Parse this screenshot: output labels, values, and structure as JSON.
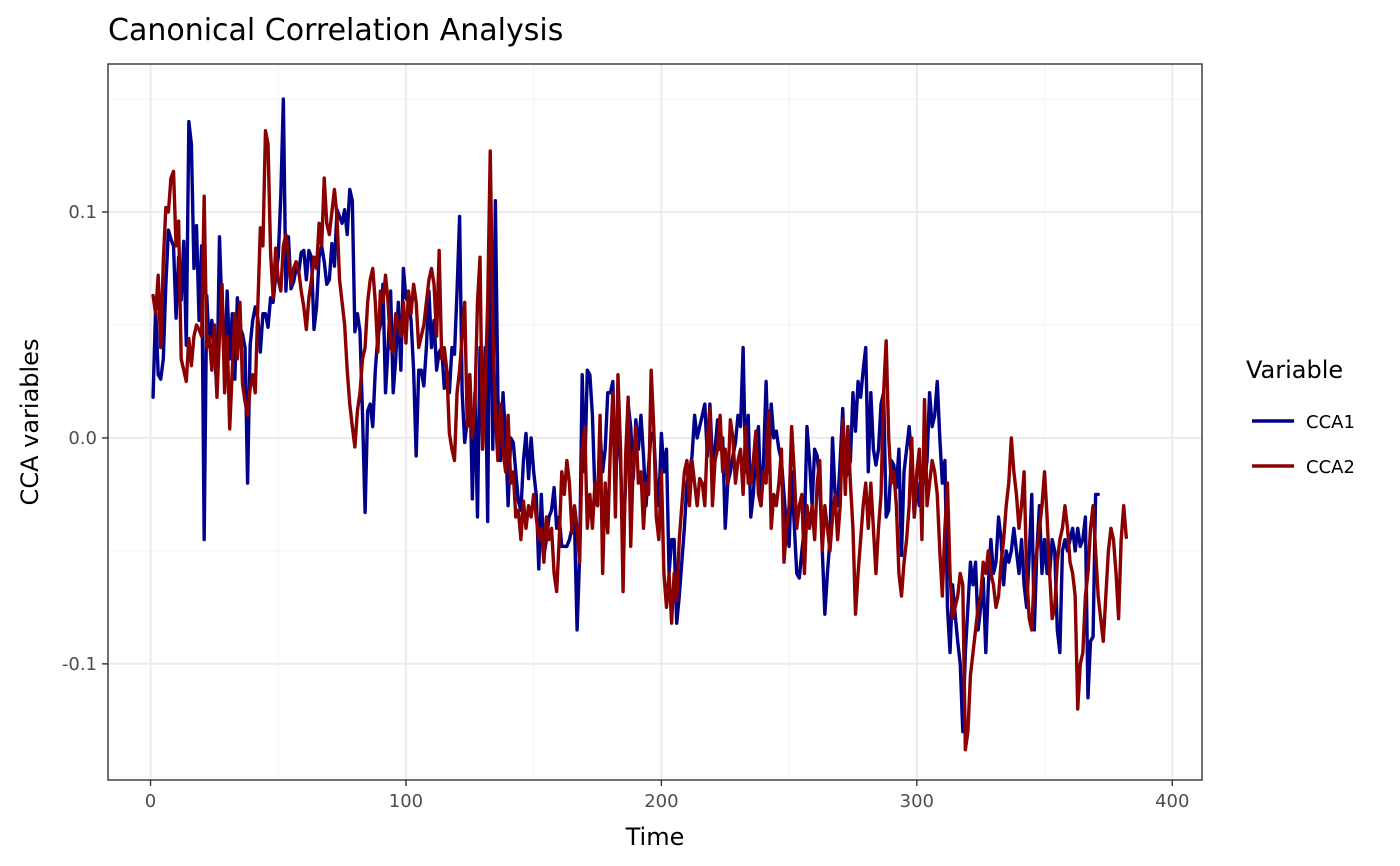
{
  "chart_data": {
    "type": "line",
    "title": "Canonical Correlation Analysis",
    "xlabel": "Time",
    "ylabel": "CCA  variables",
    "xlim": [
      -16.65,
      411.65
    ],
    "ylim": [
      -0.1514,
      0.1655
    ],
    "x_ticks": [
      0,
      100,
      200,
      300,
      400
    ],
    "x_tick_labels": [
      "0",
      "100",
      "200",
      "300",
      "400"
    ],
    "y_ticks": [
      -0.1,
      0.0,
      0.1
    ],
    "y_tick_labels": [
      "-0.1",
      "0.0",
      "0.1"
    ],
    "grid": true,
    "legend": {
      "title": "Variable",
      "position": "right"
    },
    "x_start": 1,
    "x_step": 1,
    "series": [
      {
        "name": "CCA1",
        "color": "#00008b",
        "values": [
          0.018,
          0.058,
          0.028,
          0.026,
          0.035,
          0.068,
          0.092,
          0.088,
          0.085,
          0.053,
          0.08,
          0.061,
          0.087,
          0.041,
          0.14,
          0.13,
          0.075,
          0.094,
          0.052,
          0.085,
          0.042,
          0.063,
          0.041,
          0.052,
          0.045,
          0.02,
          0.089,
          0.055,
          0.03,
          0.065,
          0.035,
          0.055,
          0.026,
          0.062,
          0.049,
          0.046,
          0.04,
          -0.02,
          0.041,
          0.052,
          0.058,
          0.053,
          0.038,
          0.055,
          0.055,
          0.049,
          0.062,
          0.052,
          0.072,
          0.08,
          0.107,
          0.15,
          0.065,
          0.089,
          0.066,
          0.069,
          0.075,
          0.073,
          0.082,
          0.083,
          0.07,
          0.083,
          0.08,
          0.048,
          0.058,
          0.08,
          0.085,
          0.078,
          0.068,
          0.07,
          0.086,
          0.076,
          0.101,
          0.098,
          0.095,
          0.101,
          0.09,
          0.11,
          0.105,
          0.047,
          0.055,
          0.047,
          0.01,
          -0.033,
          0.012,
          0.015,
          0.005,
          0.03,
          0.045,
          0.05,
          0.068,
          0.02,
          0.04,
          0.065,
          0.02,
          0.035,
          0.06,
          0.03,
          0.075,
          0.062,
          0.06,
          0.052,
          0.03,
          -0.008,
          0.03,
          0.03,
          0.023,
          0.04,
          0.065,
          0.04,
          0.052,
          0.03,
          0.038,
          0.04,
          0.022,
          0.03,
          0.02,
          0.04,
          0.037,
          0.065,
          0.098,
          0.02,
          -0.002,
          0.008,
          0.028,
          -0.027,
          0.02,
          -0.035,
          0.04,
          0.0,
          0.04,
          -0.037,
          0.105,
          -0.005,
          0.105,
          0.018,
          -0.01,
          0.02,
          0.0,
          -0.03,
          0.0,
          -0.002,
          -0.015,
          -0.028,
          -0.032,
          -0.01,
          0.002,
          -0.018,
          0.0,
          -0.015,
          -0.025,
          -0.058,
          -0.025,
          -0.052,
          -0.045,
          -0.035,
          -0.032,
          -0.022,
          -0.04,
          -0.035,
          -0.048,
          -0.048,
          -0.048,
          -0.045,
          -0.04,
          -0.038,
          -0.085,
          -0.052,
          -0.052,
          -0.015,
          0.03,
          0.028,
          0.01,
          -0.025,
          -0.03,
          0.002,
          -0.015,
          -0.005,
          0.02,
          0.02,
          0.025,
          -0.025,
          0.01,
          -0.01,
          -0.048,
          -0.02,
          0.015,
          0.005,
          -0.018,
          0.008,
          -0.005,
          0.01,
          -0.008,
          -0.03,
          -0.012,
          0.002,
          0.002,
          -0.02,
          -0.03,
          0.002,
          -0.015,
          -0.005,
          -0.06,
          -0.045,
          -0.045,
          -0.082,
          -0.07,
          -0.055,
          -0.04,
          -0.02,
          -0.015,
          -0.008,
          0.01,
          0.0,
          0.005,
          0.01,
          0.015,
          -0.008,
          0.015,
          -0.01,
          -0.005,
          0.008,
          -0.005,
          0.0,
          -0.04,
          -0.02,
          -0.015,
          -0.008,
          -0.002,
          0.01,
          0.005,
          0.04,
          -0.015,
          0.01,
          -0.035,
          -0.025,
          -0.005,
          0.005,
          -0.03,
          -0.01,
          0.025,
          -0.015,
          0.015,
          0.0,
          0.003,
          -0.005,
          -0.01,
          -0.025,
          -0.04,
          -0.048,
          -0.015,
          -0.038,
          -0.06,
          -0.062,
          -0.05,
          -0.04,
          0.005,
          -0.01,
          -0.03,
          -0.005,
          -0.008,
          -0.02,
          -0.05,
          -0.078,
          -0.06,
          -0.045,
          0.0,
          -0.025,
          -0.03,
          -0.01,
          0.013,
          -0.018,
          -0.015,
          -0.01,
          0.02,
          0.003,
          0.025,
          0.018,
          0.03,
          0.04,
          -0.015,
          0.02,
          -0.005,
          -0.012,
          -0.005,
          0.015,
          0.02,
          -0.035,
          -0.032,
          -0.01,
          -0.012,
          -0.022,
          -0.005,
          -0.052,
          -0.015,
          -0.005,
          0.005,
          -0.01,
          -0.035,
          -0.02,
          -0.03,
          -0.018,
          -0.02,
          -0.01,
          0.02,
          0.005,
          0.01,
          0.025,
          0.0,
          -0.02,
          -0.01,
          -0.075,
          -0.095,
          -0.065,
          -0.078,
          -0.09,
          -0.1,
          -0.13,
          -0.095,
          -0.075,
          -0.055,
          -0.065,
          -0.055,
          -0.085,
          -0.075,
          -0.062,
          -0.095,
          -0.065,
          -0.045,
          -0.06,
          -0.055,
          -0.035,
          -0.045,
          -0.065,
          -0.05,
          -0.055,
          -0.05,
          -0.04,
          -0.05,
          -0.06,
          -0.045,
          -0.065,
          -0.075,
          -0.052,
          -0.025,
          -0.085,
          -0.05,
          -0.03,
          -0.06,
          -0.045,
          -0.06,
          -0.06,
          -0.045,
          -0.05,
          -0.085,
          -0.095,
          -0.05,
          -0.045,
          -0.05,
          -0.045,
          -0.04,
          -0.05,
          -0.04,
          -0.048,
          -0.045,
          -0.035,
          -0.115,
          -0.09,
          -0.088,
          -0.025,
          -0.025
        ],
        "overrides": {
          "20": -0.045,
          "24": 0.04,
          "47": 0.06,
          "168": 0.028
        }
      },
      {
        "name": "CCA2",
        "color": "#8b0000",
        "values": [
          0.063,
          0.055,
          0.072,
          0.04,
          0.078,
          0.102,
          0.1,
          0.115,
          0.118,
          0.085,
          0.096,
          0.035,
          0.03,
          0.025,
          0.044,
          0.032,
          0.045,
          0.05,
          0.048,
          0.045,
          0.107,
          0.04,
          0.045,
          0.03,
          0.05,
          0.018,
          0.045,
          0.068,
          0.02,
          0.045,
          0.004,
          0.03,
          0.055,
          0.035,
          0.06,
          0.024,
          0.016,
          0.01,
          0.022,
          0.028,
          0.02,
          0.058,
          0.093,
          0.085,
          0.136,
          0.13,
          0.082,
          0.062,
          0.084,
          0.07,
          0.065,
          0.085,
          0.09,
          0.08,
          0.068,
          0.075,
          0.078,
          0.074,
          0.065,
          0.058,
          0.048,
          0.062,
          0.07,
          0.08,
          0.075,
          0.095,
          0.085,
          0.115,
          0.095,
          0.09,
          0.1,
          0.11,
          0.098,
          0.07,
          0.06,
          0.05,
          0.03,
          0.015,
          0.005,
          -0.004,
          0.012,
          0.02,
          0.035,
          0.04,
          0.06,
          0.07,
          0.075,
          0.06,
          0.038,
          0.065,
          0.06,
          0.072,
          0.06,
          0.04,
          0.038,
          0.055,
          0.05,
          0.045,
          0.06,
          0.042,
          0.065,
          0.055,
          0.068,
          0.06,
          0.04,
          0.045,
          0.05,
          0.06,
          0.07,
          0.075,
          0.068,
          0.045,
          0.083,
          0.035,
          0.04,
          0.03,
          0.002,
          -0.005,
          -0.01,
          0.02,
          0.03,
          0.045,
          0.06,
          0.005,
          0.028,
          0.0,
          0.015,
          0.06,
          0.08,
          -0.005,
          0.02,
          0.06,
          0.127,
          0.05,
          0.01,
          -0.01,
          0.015,
          -0.005,
          -0.015,
          0.01,
          -0.02,
          -0.015,
          -0.035,
          -0.032,
          -0.045,
          -0.028,
          -0.04,
          -0.03,
          -0.035,
          -0.025,
          -0.035,
          -0.045,
          -0.04,
          -0.055,
          -0.035,
          -0.045,
          -0.04,
          -0.06,
          -0.068,
          -0.045,
          -0.015,
          -0.025,
          -0.01,
          -0.02,
          -0.042,
          -0.03,
          -0.04,
          -0.055,
          -0.005,
          0.005,
          -0.04,
          -0.025,
          -0.04,
          -0.02,
          -0.03,
          0.01,
          -0.06,
          -0.02,
          -0.042,
          -0.005,
          0.02,
          -0.035,
          0.028,
          -0.005,
          -0.068,
          -0.008,
          0.018,
          -0.048,
          -0.01,
          0.005,
          -0.02,
          -0.015,
          -0.04,
          -0.02,
          -0.025,
          0.03,
          0.005,
          -0.035,
          -0.045,
          -0.015,
          -0.06,
          -0.075,
          -0.06,
          -0.082,
          -0.06,
          -0.072,
          -0.045,
          -0.03,
          -0.015,
          -0.01,
          -0.03,
          -0.01,
          -0.02,
          -0.03,
          -0.018,
          -0.02,
          -0.03,
          0.0,
          0.013,
          -0.03,
          -0.01,
          -0.005,
          0.01,
          -0.015,
          -0.005,
          -0.02,
          0.008,
          0.0,
          -0.02,
          -0.01,
          -0.005,
          -0.025,
          0.005,
          -0.02,
          -0.02,
          -0.01,
          0.003,
          -0.025,
          -0.03,
          -0.015,
          -0.02,
          0.012,
          -0.04,
          -0.025,
          -0.03,
          -0.02,
          -0.005,
          -0.055,
          -0.04,
          -0.03,
          0.005,
          -0.015,
          -0.04,
          -0.03,
          -0.025,
          -0.06,
          -0.03,
          -0.04,
          -0.03,
          -0.045,
          -0.02,
          -0.01,
          -0.05,
          -0.03,
          -0.04,
          -0.05,
          -0.035,
          -0.025,
          -0.045,
          -0.03,
          0.008,
          -0.025,
          0.005,
          -0.02,
          -0.04,
          -0.078,
          -0.06,
          -0.045,
          -0.03,
          -0.02,
          -0.04,
          -0.02,
          -0.04,
          -0.06,
          -0.04,
          -0.025,
          0.02,
          0.043,
          0.0,
          -0.02,
          -0.015,
          -0.03,
          -0.06,
          -0.07,
          -0.055,
          -0.045,
          -0.03,
          0.0,
          -0.035,
          -0.015,
          -0.005,
          -0.045,
          0.017,
          -0.03,
          -0.02,
          -0.01,
          -0.015,
          -0.025,
          -0.05,
          -0.07,
          -0.04,
          -0.02,
          -0.06,
          -0.08,
          -0.075,
          -0.07,
          -0.06,
          -0.065,
          -0.138,
          -0.13,
          -0.105,
          -0.095,
          -0.085,
          -0.075,
          -0.07,
          -0.055,
          -0.06,
          -0.05,
          -0.06,
          -0.065,
          -0.075,
          -0.07,
          -0.055,
          -0.045,
          -0.03,
          -0.02,
          0.0,
          -0.015,
          -0.025,
          -0.04,
          -0.03,
          -0.015,
          -0.06,
          -0.08,
          -0.085,
          -0.06,
          -0.05,
          -0.04,
          -0.03,
          -0.015,
          -0.035,
          -0.06,
          -0.08,
          -0.075,
          -0.055,
          -0.045,
          -0.04,
          -0.03,
          -0.04,
          -0.055,
          -0.06,
          -0.07,
          -0.12,
          -0.1,
          -0.095,
          -0.07,
          -0.06,
          -0.04,
          -0.03,
          -0.05,
          -0.07,
          -0.08,
          -0.09,
          -0.07,
          -0.05,
          -0.04,
          -0.045,
          -0.06,
          -0.08,
          -0.045,
          -0.03,
          -0.044
        ],
        "overrides": {}
      }
    ]
  }
}
